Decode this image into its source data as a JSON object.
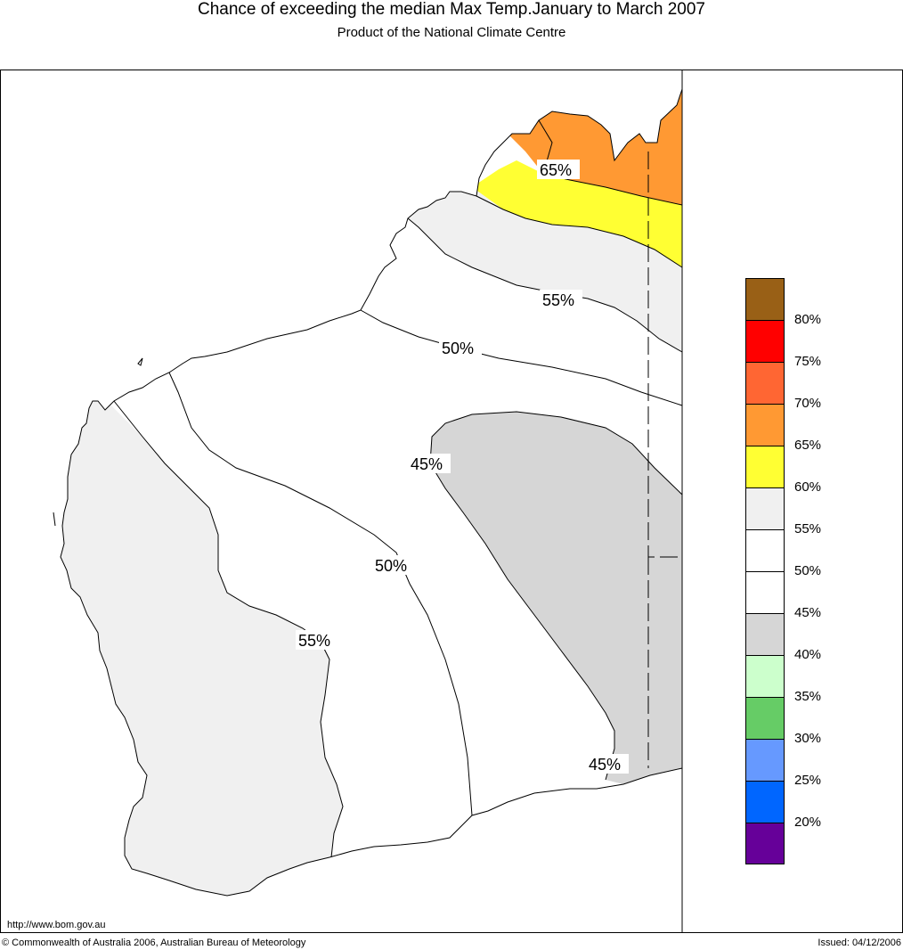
{
  "header": {
    "title": "Chance of exceeding the median Max Temp.January to March 2007",
    "subtitle": "Product of the National Climate Centre"
  },
  "map": {
    "contour_labels": [
      {
        "text": "65%"
      },
      {
        "text": "55%"
      },
      {
        "text": "50%"
      },
      {
        "text": "45%"
      },
      {
        "text": "50%"
      },
      {
        "text": "55%"
      },
      {
        "text": "45%"
      }
    ],
    "colors": {
      "40_45": "#d6d6d6",
      "45_55": "#ffffff",
      "55_60": "#f0f0f0",
      "60_65": "#ffff33",
      "65_70": "#ff9933",
      "70_75": "#ff6633"
    }
  },
  "legend": {
    "swatches": [
      {
        "color": "#996016",
        "label": "80%"
      },
      {
        "color": "#ff0000",
        "label": "75%"
      },
      {
        "color": "#ff6633",
        "label": "70%"
      },
      {
        "color": "#ff9933",
        "label": "65%"
      },
      {
        "color": "#ffff33",
        "label": "60%"
      },
      {
        "color": "#f0f0f0",
        "label": "55%"
      },
      {
        "color": "#ffffff",
        "label": "50%"
      },
      {
        "color": "#ffffff",
        "label": "45%"
      },
      {
        "color": "#d6d6d6",
        "label": "40%"
      },
      {
        "color": "#ccffcc",
        "label": "35%"
      },
      {
        "color": "#66cc66",
        "label": "30%"
      },
      {
        "color": "#6699ff",
        "label": "25%"
      },
      {
        "color": "#0066ff",
        "label": "20%"
      },
      {
        "color": "#660099",
        "label": ""
      }
    ]
  },
  "footer": {
    "url": "http://www.bom.gov.au",
    "copyright": "© Commonwealth of Australia 2006, Australian Bureau of Meteorology",
    "issued": "Issued: 04/12/2006"
  }
}
